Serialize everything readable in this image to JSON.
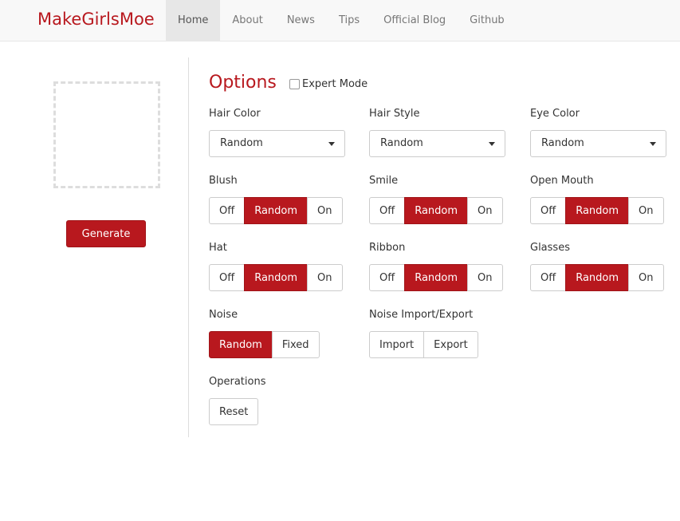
{
  "navbar": {
    "brand": "MakeGirlsMoe",
    "items": [
      "Home",
      "About",
      "News",
      "Tips",
      "Official Blog",
      "Github"
    ],
    "active_index": 0
  },
  "sidebar": {
    "button": "Generate"
  },
  "options": {
    "title": "Options",
    "expert_mode": "Expert Mode",
    "fields": [
      {
        "kind": "select",
        "label": "Hair Color",
        "value": "Random"
      },
      {
        "kind": "select",
        "label": "Hair Style",
        "value": "Random"
      },
      {
        "kind": "select",
        "label": "Eye Color",
        "value": "Random"
      },
      {
        "kind": "toggle",
        "label": "Blush",
        "choices": [
          "Off",
          "Random",
          "On"
        ],
        "selected": 1
      },
      {
        "kind": "toggle",
        "label": "Smile",
        "choices": [
          "Off",
          "Random",
          "On"
        ],
        "selected": 1
      },
      {
        "kind": "toggle",
        "label": "Open Mouth",
        "choices": [
          "Off",
          "Random",
          "On"
        ],
        "selected": 1
      },
      {
        "kind": "toggle",
        "label": "Hat",
        "choices": [
          "Off",
          "Random",
          "On"
        ],
        "selected": 1
      },
      {
        "kind": "toggle",
        "label": "Ribbon",
        "choices": [
          "Off",
          "Random",
          "On"
        ],
        "selected": 1
      },
      {
        "kind": "toggle",
        "label": "Glasses",
        "choices": [
          "Off",
          "Random",
          "On"
        ],
        "selected": 1
      },
      {
        "kind": "toggle",
        "label": "Noise",
        "choices": [
          "Random",
          "Fixed"
        ],
        "selected": 0
      },
      {
        "kind": "toggle",
        "label": "Noise Import/Export",
        "choices": [
          "Import",
          "Export"
        ],
        "selected": -1
      },
      {
        "kind": "toggle",
        "label": "Operations",
        "choices": [
          "Reset"
        ],
        "selected": -1
      }
    ]
  }
}
